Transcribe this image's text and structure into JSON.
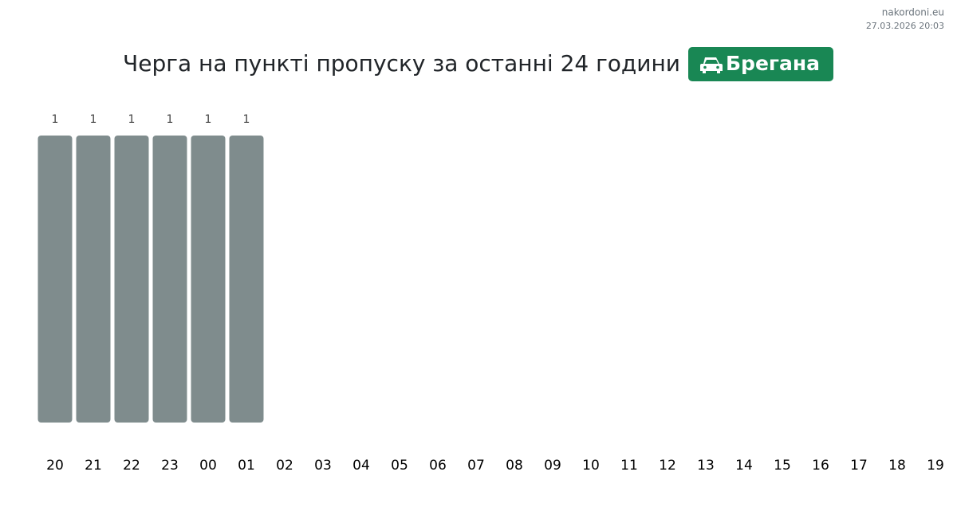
{
  "header": {
    "site": "nakordoni.eu",
    "timestamp": "27.03.2026 20:03"
  },
  "chart_data": {
    "type": "bar",
    "title": "Черга на пункті пропуску за останні 24 години",
    "badge": "Брегана",
    "categories": [
      "20",
      "21",
      "22",
      "23",
      "00",
      "01",
      "02",
      "03",
      "04",
      "05",
      "06",
      "07",
      "08",
      "09",
      "10",
      "11",
      "12",
      "13",
      "14",
      "15",
      "16",
      "17",
      "18",
      "19"
    ],
    "values": [
      1,
      1,
      1,
      1,
      1,
      1,
      null,
      null,
      null,
      null,
      null,
      null,
      null,
      null,
      null,
      null,
      null,
      null,
      null,
      null,
      null,
      null,
      null,
      null
    ],
    "color": "#7f8c8d",
    "badge_color": "#198754",
    "ylim": [
      0,
      1
    ]
  }
}
